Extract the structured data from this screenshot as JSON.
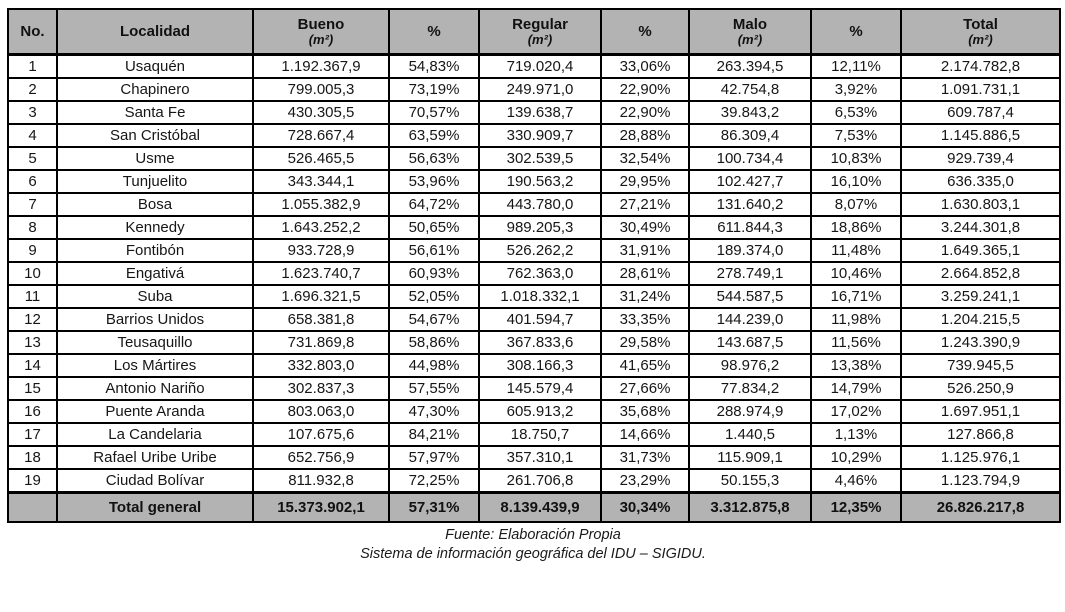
{
  "table": {
    "headers": [
      {
        "label": "No.",
        "sub": ""
      },
      {
        "label": "Localidad",
        "sub": ""
      },
      {
        "label": "Bueno",
        "sub": "(m²)"
      },
      {
        "label": "%",
        "sub": ""
      },
      {
        "label": "Regular",
        "sub": "(m²)"
      },
      {
        "label": "%",
        "sub": ""
      },
      {
        "label": "Malo",
        "sub": "(m²)"
      },
      {
        "label": "%",
        "sub": ""
      },
      {
        "label": "Total",
        "sub": "(m²)"
      }
    ],
    "rows": [
      [
        "1",
        "Usaquén",
        "1.192.367,9",
        "54,83%",
        "719.020,4",
        "33,06%",
        "263.394,5",
        "12,11%",
        "2.174.782,8"
      ],
      [
        "2",
        "Chapinero",
        "799.005,3",
        "73,19%",
        "249.971,0",
        "22,90%",
        "42.754,8",
        "3,92%",
        "1.091.731,1"
      ],
      [
        "3",
        "Santa Fe",
        "430.305,5",
        "70,57%",
        "139.638,7",
        "22,90%",
        "39.843,2",
        "6,53%",
        "609.787,4"
      ],
      [
        "4",
        "San Cristóbal",
        "728.667,4",
        "63,59%",
        "330.909,7",
        "28,88%",
        "86.309,4",
        "7,53%",
        "1.145.886,5"
      ],
      [
        "5",
        "Usme",
        "526.465,5",
        "56,63%",
        "302.539,5",
        "32,54%",
        "100.734,4",
        "10,83%",
        "929.739,4"
      ],
      [
        "6",
        "Tunjuelito",
        "343.344,1",
        "53,96%",
        "190.563,2",
        "29,95%",
        "102.427,7",
        "16,10%",
        "636.335,0"
      ],
      [
        "7",
        "Bosa",
        "1.055.382,9",
        "64,72%",
        "443.780,0",
        "27,21%",
        "131.640,2",
        "8,07%",
        "1.630.803,1"
      ],
      [
        "8",
        "Kennedy",
        "1.643.252,2",
        "50,65%",
        "989.205,3",
        "30,49%",
        "611.844,3",
        "18,86%",
        "3.244.301,8"
      ],
      [
        "9",
        "Fontibón",
        "933.728,9",
        "56,61%",
        "526.262,2",
        "31,91%",
        "189.374,0",
        "11,48%",
        "1.649.365,1"
      ],
      [
        "10",
        "Engativá",
        "1.623.740,7",
        "60,93%",
        "762.363,0",
        "28,61%",
        "278.749,1",
        "10,46%",
        "2.664.852,8"
      ],
      [
        "11",
        "Suba",
        "1.696.321,5",
        "52,05%",
        "1.018.332,1",
        "31,24%",
        "544.587,5",
        "16,71%",
        "3.259.241,1"
      ],
      [
        "12",
        "Barrios Unidos",
        "658.381,8",
        "54,67%",
        "401.594,7",
        "33,35%",
        "144.239,0",
        "11,98%",
        "1.204.215,5"
      ],
      [
        "13",
        "Teusaquillo",
        "731.869,8",
        "58,86%",
        "367.833,6",
        "29,58%",
        "143.687,5",
        "11,56%",
        "1.243.390,9"
      ],
      [
        "14",
        "Los Mártires",
        "332.803,0",
        "44,98%",
        "308.166,3",
        "41,65%",
        "98.976,2",
        "13,38%",
        "739.945,5"
      ],
      [
        "15",
        "Antonio Nariño",
        "302.837,3",
        "57,55%",
        "145.579,4",
        "27,66%",
        "77.834,2",
        "14,79%",
        "526.250,9"
      ],
      [
        "16",
        "Puente Aranda",
        "803.063,0",
        "47,30%",
        "605.913,2",
        "35,68%",
        "288.974,9",
        "17,02%",
        "1.697.951,1"
      ],
      [
        "17",
        "La Candelaria",
        "107.675,6",
        "84,21%",
        "18.750,7",
        "14,66%",
        "1.440,5",
        "1,13%",
        "127.866,8"
      ],
      [
        "18",
        "Rafael Uribe Uribe",
        "652.756,9",
        "57,97%",
        "357.310,1",
        "31,73%",
        "115.909,1",
        "10,29%",
        "1.125.976,1"
      ],
      [
        "19",
        "Ciudad Bolívar",
        "811.932,8",
        "72,25%",
        "261.706,8",
        "23,29%",
        "50.155,3",
        "4,46%",
        "1.123.794,9"
      ]
    ],
    "total_row": [
      "",
      "Total general",
      "15.373.902,1",
      "57,31%",
      "8.139.439,9",
      "30,34%",
      "3.312.875,8",
      "12,35%",
      "26.826.217,8"
    ]
  },
  "footer": {
    "line1": "Fuente: Elaboración Propia",
    "line2": "Sistema de información geográfica del IDU – SIGIDU."
  },
  "colors": {
    "header_bg": "#b3b3b3",
    "border": "#000000",
    "text": "#161616"
  }
}
